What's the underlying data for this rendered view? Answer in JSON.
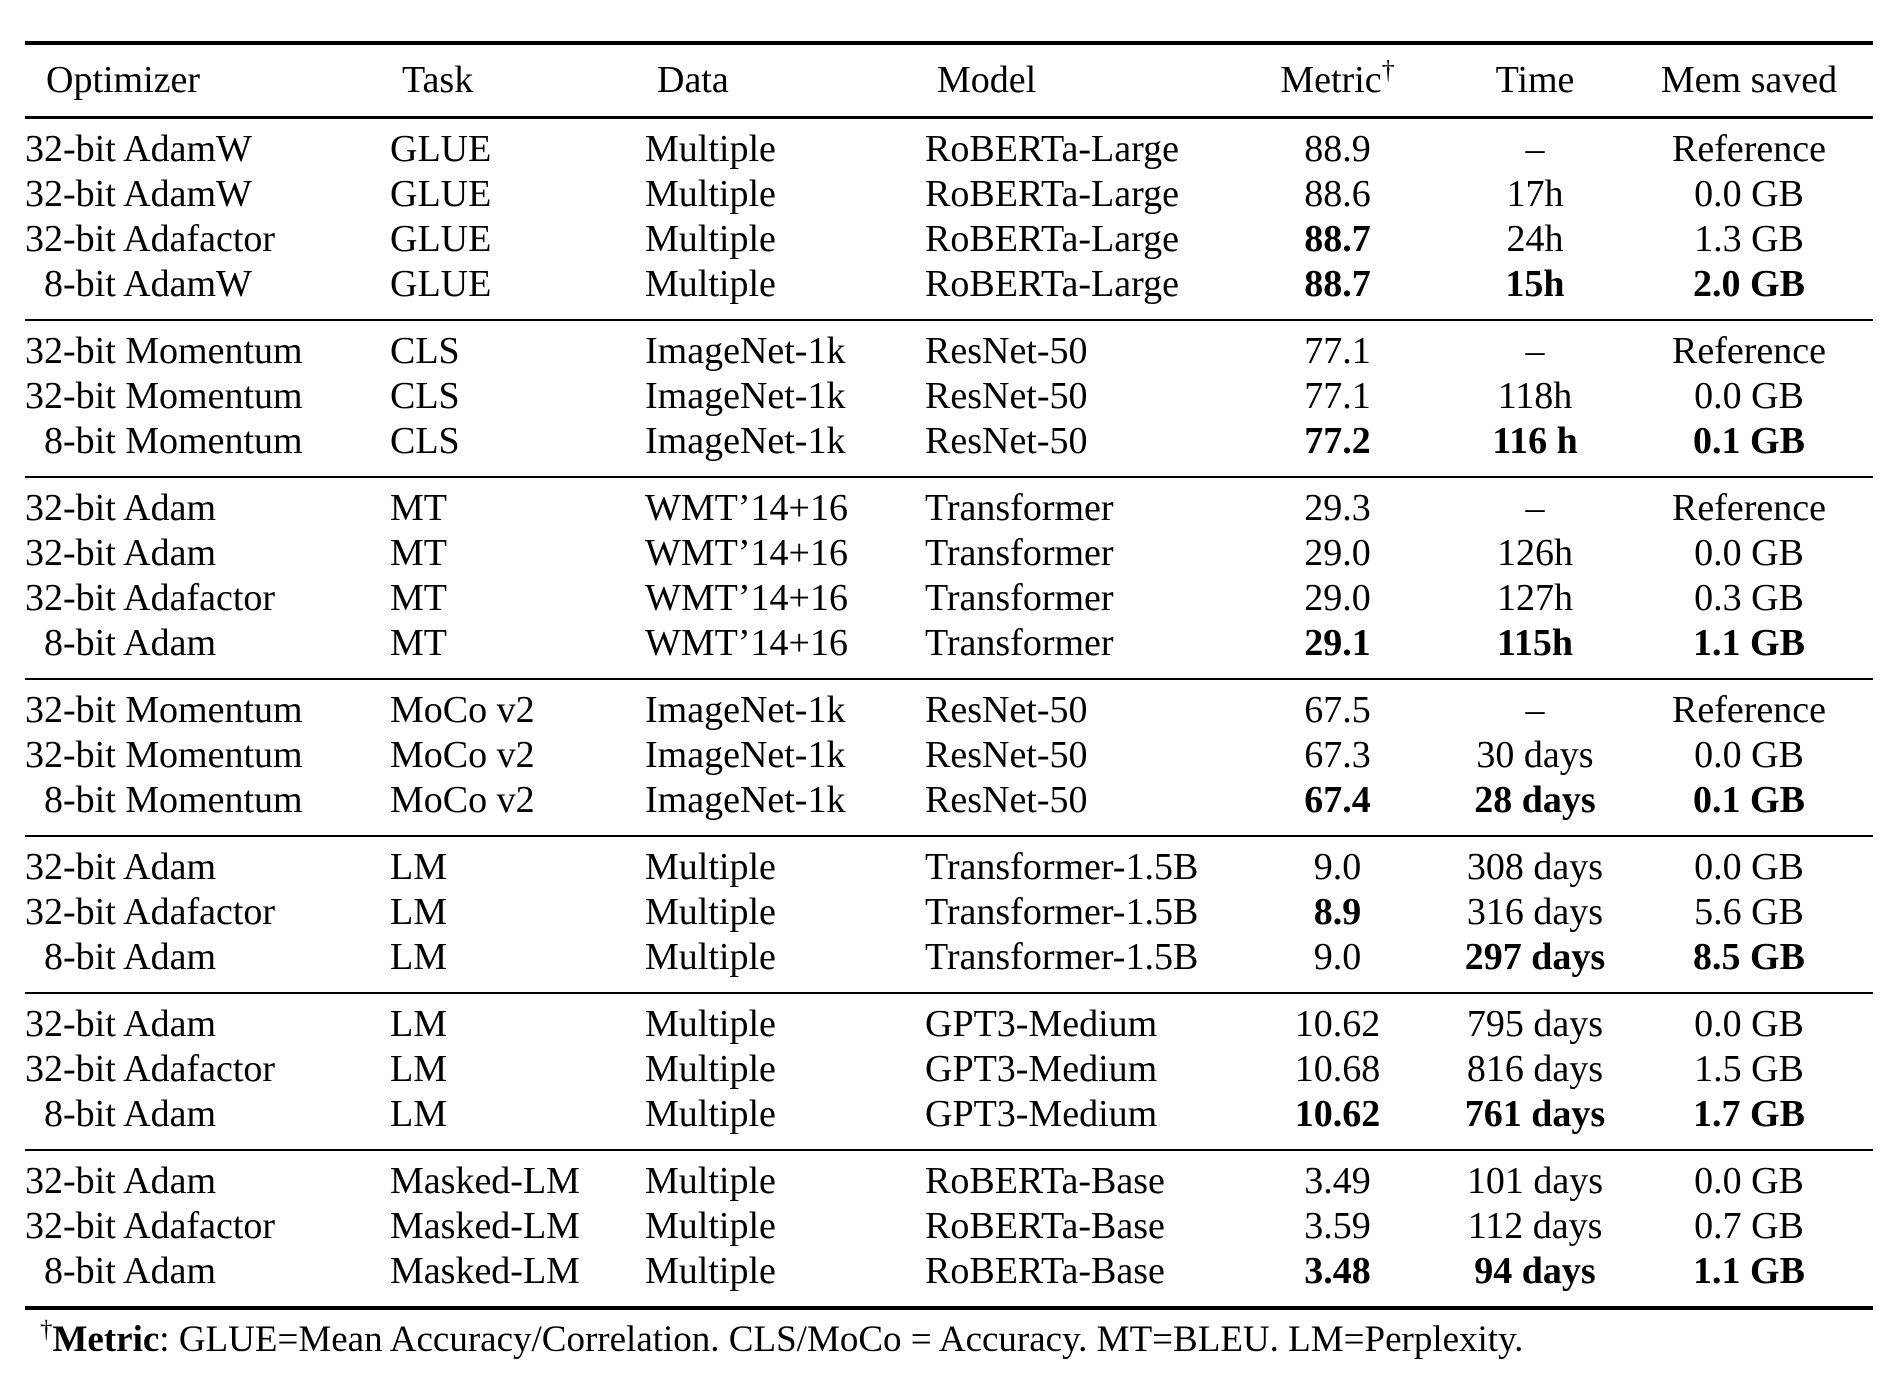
{
  "page": {
    "background": "#ffffff",
    "text_color": "#000000"
  },
  "table": {
    "columns": [
      {
        "label": "Optimizer"
      },
      {
        "label": "Task"
      },
      {
        "label": "Data"
      },
      {
        "label": "Model"
      },
      {
        "label": "Metric",
        "superscript": "†"
      },
      {
        "label": "Time"
      },
      {
        "label": "Mem saved"
      }
    ],
    "sections": [
      {
        "rows": [
          {
            "optimizer": "32-bit AdamW",
            "task": "GLUE",
            "data": "Multiple",
            "model": "RoBERTa-Large",
            "metric": "88.9",
            "time": "–",
            "mem": "Reference",
            "bold": []
          },
          {
            "optimizer": "32-bit AdamW",
            "task": "GLUE",
            "data": "Multiple",
            "model": "RoBERTa-Large",
            "metric": "88.6",
            "time": "17h",
            "mem": "0.0 GB",
            "bold": []
          },
          {
            "optimizer": "32-bit Adafactor",
            "task": "GLUE",
            "data": "Multiple",
            "model": "RoBERTa-Large",
            "metric": "88.7",
            "time": "24h",
            "mem": "1.3 GB",
            "bold": [
              "metric"
            ]
          },
          {
            "optimizer": "8-bit AdamW",
            "task": "GLUE",
            "data": "Multiple",
            "model": "RoBERTa-Large",
            "metric": "88.7",
            "time": "15h",
            "mem": "2.0 GB",
            "bold": [
              "metric",
              "time",
              "mem"
            ]
          }
        ]
      },
      {
        "rows": [
          {
            "optimizer": "32-bit Momentum",
            "task": "CLS",
            "data": "ImageNet-1k",
            "model": "ResNet-50",
            "metric": "77.1",
            "time": "–",
            "mem": "Reference",
            "bold": []
          },
          {
            "optimizer": "32-bit Momentum",
            "task": "CLS",
            "data": "ImageNet-1k",
            "model": "ResNet-50",
            "metric": "77.1",
            "time": "118h",
            "mem": "0.0 GB",
            "bold": []
          },
          {
            "optimizer": "8-bit Momentum",
            "task": "CLS",
            "data": "ImageNet-1k",
            "model": "ResNet-50",
            "metric": "77.2",
            "time": "116 h",
            "mem": "0.1 GB",
            "bold": [
              "metric",
              "time",
              "mem"
            ]
          }
        ]
      },
      {
        "rows": [
          {
            "optimizer": "32-bit Adam",
            "task": "MT",
            "data": "WMT’14+16",
            "model": "Transformer",
            "metric": "29.3",
            "time": "–",
            "mem": "Reference",
            "bold": []
          },
          {
            "optimizer": "32-bit Adam",
            "task": "MT",
            "data": "WMT’14+16",
            "model": "Transformer",
            "metric": "29.0",
            "time": "126h",
            "mem": "0.0 GB",
            "bold": []
          },
          {
            "optimizer": "32-bit Adafactor",
            "task": "MT",
            "data": "WMT’14+16",
            "model": "Transformer",
            "metric": "29.0",
            "time": "127h",
            "mem": "0.3 GB",
            "bold": []
          },
          {
            "optimizer": "8-bit Adam",
            "task": "MT",
            "data": "WMT’14+16",
            "model": "Transformer",
            "metric": "29.1",
            "time": "115h",
            "mem": "1.1 GB",
            "bold": [
              "metric",
              "time",
              "mem"
            ]
          }
        ]
      },
      {
        "rows": [
          {
            "optimizer": "32-bit Momentum",
            "task": "MoCo v2",
            "data": "ImageNet-1k",
            "model": "ResNet-50",
            "metric": "67.5",
            "time": "–",
            "mem": "Reference",
            "bold": []
          },
          {
            "optimizer": "32-bit Momentum",
            "task": "MoCo v2",
            "data": "ImageNet-1k",
            "model": "ResNet-50",
            "metric": "67.3",
            "time": "30 days",
            "mem": "0.0 GB",
            "bold": []
          },
          {
            "optimizer": "8-bit Momentum",
            "task": "MoCo v2",
            "data": "ImageNet-1k",
            "model": "ResNet-50",
            "metric": "67.4",
            "time": "28 days",
            "mem": "0.1 GB",
            "bold": [
              "metric",
              "time",
              "mem"
            ]
          }
        ]
      },
      {
        "rows": [
          {
            "optimizer": "32-bit Adam",
            "task": "LM",
            "data": "Multiple",
            "model": "Transformer-1.5B",
            "metric": "9.0",
            "time": "308 days",
            "mem": "0.0 GB",
            "bold": []
          },
          {
            "optimizer": "32-bit Adafactor",
            "task": "LM",
            "data": "Multiple",
            "model": "Transformer-1.5B",
            "metric": "8.9",
            "time": "316 days",
            "mem": "5.6 GB",
            "bold": [
              "metric"
            ]
          },
          {
            "optimizer": "8-bit Adam",
            "task": "LM",
            "data": "Multiple",
            "model": "Transformer-1.5B",
            "metric": "9.0",
            "time": "297 days",
            "mem": "8.5 GB",
            "bold": [
              "time",
              "mem"
            ]
          }
        ]
      },
      {
        "rows": [
          {
            "optimizer": "32-bit Adam",
            "task": "LM",
            "data": "Multiple",
            "model": "GPT3-Medium",
            "metric": "10.62",
            "time": "795 days",
            "mem": "0.0 GB",
            "bold": []
          },
          {
            "optimizer": "32-bit Adafactor",
            "task": "LM",
            "data": "Multiple",
            "model": "GPT3-Medium",
            "metric": "10.68",
            "time": "816 days",
            "mem": "1.5 GB",
            "bold": []
          },
          {
            "optimizer": "8-bit Adam",
            "task": "LM",
            "data": "Multiple",
            "model": "GPT3-Medium",
            "metric": "10.62",
            "time": "761 days",
            "mem": "1.7 GB",
            "bold": [
              "metric",
              "time",
              "mem"
            ]
          }
        ]
      },
      {
        "rows": [
          {
            "optimizer": "32-bit Adam",
            "task": "Masked-LM",
            "data": "Multiple",
            "model": "RoBERTa-Base",
            "metric": "3.49",
            "time": "101 days",
            "mem": "0.0 GB",
            "bold": []
          },
          {
            "optimizer": "32-bit Adafactor",
            "task": "Masked-LM",
            "data": "Multiple",
            "model": "RoBERTa-Base",
            "metric": "3.59",
            "time": "112 days",
            "mem": "0.7 GB",
            "bold": []
          },
          {
            "optimizer": "8-bit Adam",
            "task": "Masked-LM",
            "data": "Multiple",
            "model": "RoBERTa-Base",
            "metric": "3.48",
            "time": "94 days",
            "mem": "1.1 GB",
            "bold": [
              "metric",
              "time",
              "mem"
            ]
          }
        ]
      }
    ]
  },
  "footnote": {
    "dagger": "†",
    "label": "Metric",
    "text": ": GLUE=Mean Accuracy/Correlation. CLS/MoCo = Accuracy. MT=BLEU. LM=Perplexity."
  }
}
